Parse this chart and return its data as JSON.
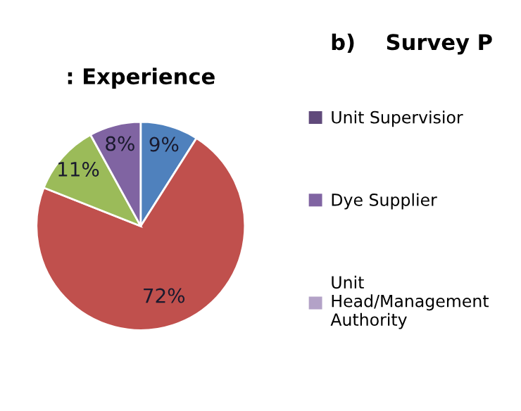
{
  "chart_data": [
    {
      "type": "pie",
      "title": ": Experience",
      "categories": [
        null,
        null,
        null,
        null
      ],
      "values": [
        9,
        72,
        11,
        8
      ],
      "colors": [
        "#4f81bd",
        "#c0504d",
        "#9bbb59",
        "#8064a2"
      ],
      "value_labels": [
        "9%",
        "72%",
        "11%",
        "8%"
      ]
    },
    {
      "type": "other",
      "title": "b)    Survey P",
      "categories": [
        "Unit Supervisior",
        "Dye Supplier",
        "Unit\nHead/Management\nAuthority"
      ],
      "colors": [
        "#604a7b",
        "#8064a2",
        "#b3a2c7"
      ]
    }
  ]
}
